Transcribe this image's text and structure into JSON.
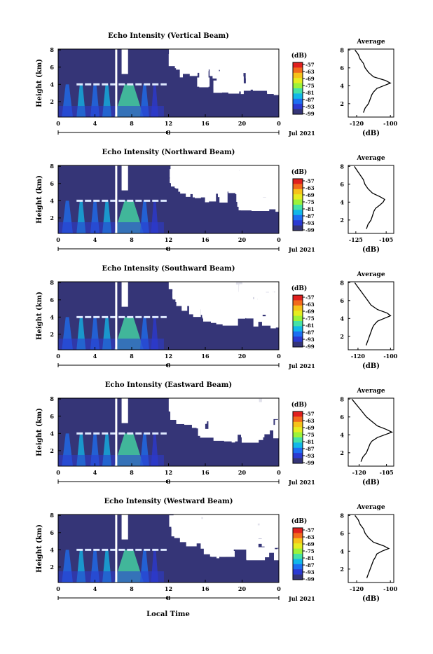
{
  "figure": {
    "xlabel": "Local Time",
    "date_label": "Jul 2021",
    "day_marker": "8",
    "colorbar_unit": "(dB)",
    "colorbar_ticks": [
      "-57",
      "-63",
      "-69",
      "-75",
      "-81",
      "-87",
      "-93",
      "-99"
    ],
    "colorbar_colors": [
      "#e0201e",
      "#f26a1c",
      "#f6c21a",
      "#e6ec21",
      "#9cf23a",
      "#45e2a6",
      "#12b8e8",
      "#1d6ff2",
      "#2b3ad2",
      "#353577"
    ],
    "background_color": "#353577",
    "layer_color": "#dde8ff",
    "avg_title": "Average",
    "avg_xlabel": "(dB)"
  },
  "chart_data": [
    {
      "type": "heatmap",
      "title": "Echo Intensity (Vertical Beam)",
      "xlabel": "",
      "ylabel": "Height (km)",
      "x_ticks": [
        "0",
        "4",
        "8",
        "12",
        "16",
        "20",
        "0"
      ],
      "xlim": [
        0,
        24
      ],
      "ylim": [
        0.2,
        8.1
      ],
      "y_ticks": [
        "8",
        "6",
        "4",
        "2"
      ],
      "colorbar": {
        "min": -99,
        "max": -57
      },
      "bright_layer_height_km": 4.0,
      "avg_profile": {
        "x_ticks": [
          "-120",
          "-100"
        ],
        "xlim": [
          -125,
          -98
        ],
        "ylim": [
          0.5,
          8.1
        ],
        "y_ticks": [
          "8",
          "6",
          "4",
          "2"
        ],
        "heights": [
          8,
          7.5,
          7,
          6.5,
          6,
          5.5,
          5,
          4.6,
          4.3,
          4.0,
          3.7,
          3.3,
          3,
          2.5,
          2,
          1.5,
          1.0
        ],
        "values": [
          -121,
          -119,
          -118,
          -116,
          -115,
          -113,
          -110,
          -103,
          -100,
          -104,
          -108,
          -110,
          -111,
          -112,
          -113,
          -115,
          -116
        ]
      }
    },
    {
      "type": "heatmap",
      "title": "Echo Intensity (Northward Beam)",
      "xlabel": "",
      "ylabel": "Height (km)",
      "x_ticks": [
        "0",
        "4",
        "8",
        "12",
        "16",
        "20",
        "0"
      ],
      "xlim": [
        0,
        24
      ],
      "ylim": [
        0.2,
        8.1
      ],
      "y_ticks": [
        "8",
        "6",
        "4",
        "2"
      ],
      "colorbar": {
        "min": -99,
        "max": -57
      },
      "bright_layer_height_km": 4.0,
      "avg_profile": {
        "x_ticks": [
          "-125",
          "-105"
        ],
        "xlim": [
          -130,
          -100
        ],
        "ylim": [
          0.5,
          8.1
        ],
        "y_ticks": [
          "8",
          "6",
          "4",
          "2"
        ],
        "heights": [
          8,
          7.5,
          7,
          6.5,
          6,
          5.5,
          5,
          4.6,
          4.3,
          4.0,
          3.7,
          3.3,
          3,
          2.5,
          2,
          1.5,
          1.0
        ],
        "values": [
          -126,
          -124,
          -122,
          -120,
          -119,
          -117,
          -114,
          -109,
          -106,
          -107,
          -109,
          -112,
          -113,
          -114,
          -115,
          -117,
          -118
        ]
      }
    },
    {
      "type": "heatmap",
      "title": "Echo Intensity (Southward Beam)",
      "xlabel": "",
      "ylabel": "Height (km)",
      "x_ticks": [
        "0",
        "4",
        "8",
        "12",
        "16",
        "20",
        "0"
      ],
      "xlim": [
        0,
        24
      ],
      "ylim": [
        0.2,
        8.1
      ],
      "y_ticks": [
        "8",
        "6",
        "4",
        "2"
      ],
      "colorbar": {
        "min": -99,
        "max": -57
      },
      "bright_layer_height_km": 4.0,
      "avg_profile": {
        "x_ticks": [
          "-120",
          "-100"
        ],
        "xlim": [
          -126,
          -98
        ],
        "ylim": [
          0.5,
          8.1
        ],
        "y_ticks": [
          "8",
          "6",
          "4",
          "2"
        ],
        "heights": [
          8,
          7.5,
          7,
          6.5,
          6,
          5.5,
          5,
          4.6,
          4.3,
          4.0,
          3.7,
          3.3,
          3,
          2.5,
          2,
          1.5,
          1.0
        ],
        "values": [
          -122,
          -120,
          -118,
          -116,
          -114,
          -112,
          -108,
          -102,
          -100,
          -104,
          -108,
          -110,
          -111,
          -112,
          -113,
          -114,
          -115
        ]
      }
    },
    {
      "type": "heatmap",
      "title": "Echo Intensity (Eastward Beam)",
      "xlabel": "",
      "ylabel": "Height (km)",
      "x_ticks": [
        "0",
        "4",
        "8",
        "12",
        "16",
        "20",
        "0"
      ],
      "xlim": [
        0,
        24
      ],
      "ylim": [
        0.2,
        8.1
      ],
      "y_ticks": [
        "8",
        "6",
        "4",
        "2"
      ],
      "colorbar": {
        "min": -99,
        "max": -57
      },
      "bright_layer_height_km": 4.0,
      "avg_profile": {
        "x_ticks": [
          "-120",
          "-105"
        ],
        "xlim": [
          -126,
          -101
        ],
        "ylim": [
          0.5,
          8.1
        ],
        "y_ticks": [
          "8",
          "6",
          "4",
          "2"
        ],
        "heights": [
          8,
          7.5,
          7,
          6.5,
          6,
          5.5,
          5,
          4.6,
          4.3,
          4.0,
          3.7,
          3.3,
          3,
          2.5,
          2,
          1.5,
          1.0
        ],
        "values": [
          -124,
          -122,
          -120,
          -118,
          -116,
          -113,
          -110,
          -105,
          -102,
          -106,
          -110,
          -113,
          -114,
          -115,
          -116,
          -118,
          -119
        ]
      }
    },
    {
      "type": "heatmap",
      "title": "Echo Intensity (Westward Beam)",
      "xlabel": "",
      "ylabel": "Height (km)",
      "x_ticks": [
        "0",
        "4",
        "8",
        "12",
        "16",
        "20",
        "0"
      ],
      "xlim": [
        0,
        24
      ],
      "ylim": [
        0.2,
        8.1
      ],
      "y_ticks": [
        "8",
        "6",
        "4",
        "2"
      ],
      "colorbar": {
        "min": -99,
        "max": -57
      },
      "bright_layer_height_km": 4.0,
      "avg_profile": {
        "x_ticks": [
          "-120",
          "-100"
        ],
        "xlim": [
          -125,
          -98
        ],
        "ylim": [
          0.5,
          8.1
        ],
        "y_ticks": [
          "8",
          "6",
          "4",
          "2"
        ],
        "heights": [
          8,
          7.5,
          7,
          6.5,
          6,
          5.5,
          5,
          4.6,
          4.3,
          4.0,
          3.7,
          3.3,
          3,
          2.5,
          2,
          1.5,
          1.0
        ],
        "values": [
          -121,
          -119,
          -118,
          -116,
          -115,
          -113,
          -110,
          -104,
          -101,
          -105,
          -108,
          -109,
          -110,
          -111,
          -112,
          -113,
          -114
        ]
      }
    }
  ]
}
